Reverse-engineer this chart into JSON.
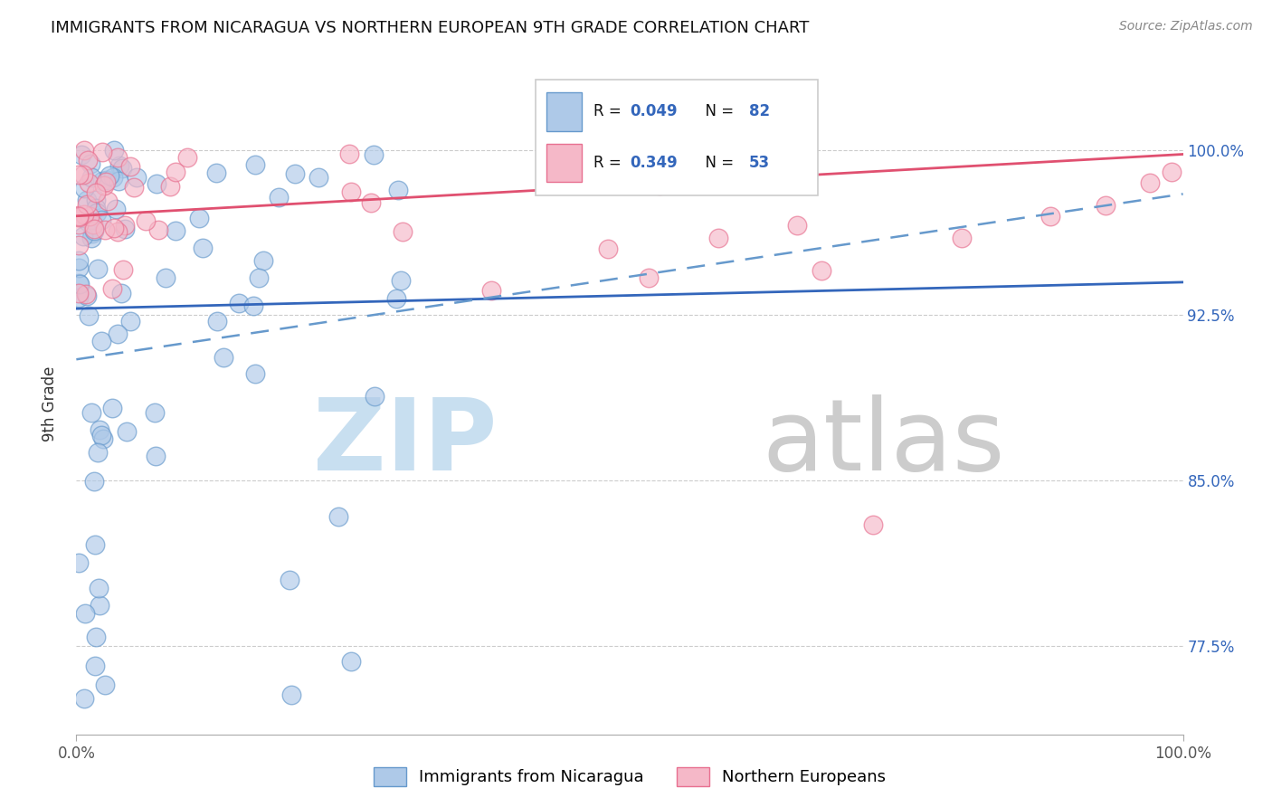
{
  "title": "IMMIGRANTS FROM NICARAGUA VS NORTHERN EUROPEAN 9TH GRADE CORRELATION CHART",
  "source": "Source: ZipAtlas.com",
  "ylabel": "9th Grade",
  "ytick_labels": [
    "77.5%",
    "85.0%",
    "92.5%",
    "100.0%"
  ],
  "ytick_values": [
    0.775,
    0.85,
    0.925,
    1.0
  ],
  "blue_label": "Immigrants from Nicaragua",
  "pink_label": "Northern Europeans",
  "blue_face": "#aec9e8",
  "blue_edge": "#6699cc",
  "pink_face": "#f5b8c8",
  "pink_edge": "#e87090",
  "blue_line_color": "#3366bb",
  "pink_line_color": "#e05070",
  "dashed_line_color": "#6699cc",
  "R_blue": "0.049",
  "N_blue": "82",
  "R_pink": "0.349",
  "N_pink": "53",
  "R_N_color": "#3366bb",
  "grid_color": "#cccccc",
  "watermark_zip_color": "#c8dff0",
  "watermark_atlas_color": "#cccccc",
  "background_color": "#ffffff",
  "xlim": [
    0.0,
    1.0
  ],
  "ylim": [
    0.735,
    1.035
  ],
  "title_fontsize": 13,
  "source_fontsize": 10,
  "ytick_fontsize": 12,
  "xtick_fontsize": 12,
  "ylabel_fontsize": 12
}
